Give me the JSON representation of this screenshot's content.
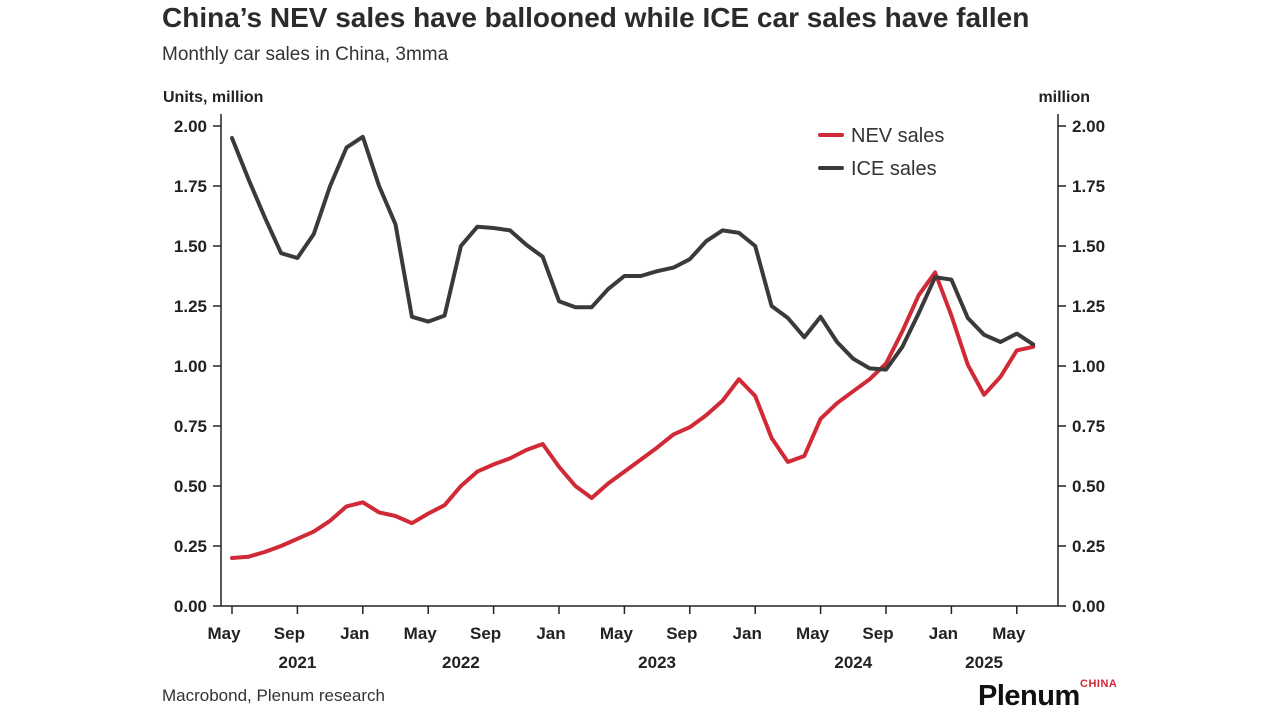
{
  "header": {
    "title": "China’s NEV sales have ballooned while ICE car sales have fallen",
    "subtitle": "Monthly car sales in China, 3mma"
  },
  "footer": {
    "source": "Macrobond, Plenum research",
    "logo_word": "Plenum",
    "logo_sub": "CHINA"
  },
  "colors": {
    "nev": "#d12a36",
    "ice": "#3a3a3a",
    "axis": "#222222",
    "text": "#222222"
  },
  "chart_data": {
    "type": "line",
    "title": "China’s NEV sales have ballooned while ICE car sales have fallen",
    "subtitle": "Monthly car sales in China, 3mma",
    "ylabel_left": "Units, million",
    "ylabel_right": "million",
    "ylim": [
      0,
      2
    ],
    "yticks": [
      "0.00",
      "0.25",
      "0.50",
      "0.75",
      "1.00",
      "1.25",
      "1.50",
      "1.75",
      "2.00"
    ],
    "x_start": "2021-05",
    "x_end": "2025-05",
    "x_tick_labels": [
      {
        "month": "2021-05",
        "label": "May"
      },
      {
        "month": "2021-09",
        "label": "Sep"
      },
      {
        "month": "2022-01",
        "label": "Jan"
      },
      {
        "month": "2022-05",
        "label": "May"
      },
      {
        "month": "2022-09",
        "label": "Sep"
      },
      {
        "month": "2023-01",
        "label": "Jan"
      },
      {
        "month": "2023-05",
        "label": "May"
      },
      {
        "month": "2023-09",
        "label": "Sep"
      },
      {
        "month": "2024-01",
        "label": "Jan"
      },
      {
        "month": "2024-05",
        "label": "May"
      },
      {
        "month": "2024-09",
        "label": "Sep"
      },
      {
        "month": "2025-01",
        "label": "Jan"
      },
      {
        "month": "2025-05",
        "label": "May"
      }
    ],
    "year_labels": [
      {
        "month": "2021-09",
        "label": "2021"
      },
      {
        "month": "2022-07",
        "label": "2022"
      },
      {
        "month": "2023-07",
        "label": "2023"
      },
      {
        "month": "2024-07",
        "label": "2024"
      },
      {
        "month": "2025-03",
        "label": "2025"
      }
    ],
    "legend_position": "top-right",
    "series": [
      {
        "name": "NEV sales",
        "color": "#d12a36",
        "points": [
          [
            "2021-05",
            0.2
          ],
          [
            "2021-06",
            0.205
          ],
          [
            "2021-07",
            0.225
          ],
          [
            "2021-08",
            0.25
          ],
          [
            "2021-09",
            0.28
          ],
          [
            "2021-10",
            0.31
          ],
          [
            "2021-11",
            0.355
          ],
          [
            "2021-12",
            0.415
          ],
          [
            "2022-01",
            0.432
          ],
          [
            "2022-02",
            0.39
          ],
          [
            "2022-03",
            0.375
          ],
          [
            "2022-04",
            0.345
          ],
          [
            "2022-05",
            0.385
          ],
          [
            "2022-06",
            0.42
          ],
          [
            "2022-07",
            0.5
          ],
          [
            "2022-08",
            0.56
          ],
          [
            "2022-09",
            0.59
          ],
          [
            "2022-10",
            0.615
          ],
          [
            "2022-11",
            0.65
          ],
          [
            "2022-12",
            0.675
          ],
          [
            "2023-01",
            0.58
          ],
          [
            "2023-02",
            0.5
          ],
          [
            "2023-03",
            0.45
          ],
          [
            "2023-04",
            0.51
          ],
          [
            "2023-05",
            0.56
          ],
          [
            "2023-06",
            0.61
          ],
          [
            "2023-07",
            0.66
          ],
          [
            "2023-08",
            0.715
          ],
          [
            "2023-09",
            0.745
          ],
          [
            "2023-10",
            0.795
          ],
          [
            "2023-11",
            0.855
          ],
          [
            "2023-12",
            0.945
          ],
          [
            "2024-01",
            0.875
          ],
          [
            "2024-02",
            0.7
          ],
          [
            "2024-03",
            0.6
          ],
          [
            "2024-04",
            0.625
          ],
          [
            "2024-05",
            0.78
          ],
          [
            "2024-06",
            0.845
          ],
          [
            "2024-07",
            0.895
          ],
          [
            "2024-08",
            0.945
          ],
          [
            "2024-09",
            1.01
          ],
          [
            "2024-10",
            1.145
          ],
          [
            "2024-11",
            1.295
          ],
          [
            "2024-12",
            1.39
          ],
          [
            "2025-01",
            1.21
          ],
          [
            "2025-02",
            1.005
          ],
          [
            "2025-03",
            0.88
          ],
          [
            "2025-04",
            0.955
          ],
          [
            "2025-05",
            1.065
          ],
          [
            "2025-06",
            1.08
          ]
        ]
      },
      {
        "name": "ICE sales",
        "color": "#3a3a3a",
        "points": [
          [
            "2021-05",
            1.95
          ],
          [
            "2021-06",
            1.78
          ],
          [
            "2021-07",
            1.62
          ],
          [
            "2021-08",
            1.47
          ],
          [
            "2021-09",
            1.45
          ],
          [
            "2021-10",
            1.55
          ],
          [
            "2021-11",
            1.75
          ],
          [
            "2021-12",
            1.91
          ],
          [
            "2022-01",
            1.955
          ],
          [
            "2022-02",
            1.75
          ],
          [
            "2022-03",
            1.59
          ],
          [
            "2022-04",
            1.205
          ],
          [
            "2022-05",
            1.185
          ],
          [
            "2022-06",
            1.21
          ],
          [
            "2022-07",
            1.5
          ],
          [
            "2022-08",
            1.58
          ],
          [
            "2022-09",
            1.575
          ],
          [
            "2022-10",
            1.565
          ],
          [
            "2022-11",
            1.505
          ],
          [
            "2022-12",
            1.455
          ],
          [
            "2023-01",
            1.27
          ],
          [
            "2023-02",
            1.245
          ],
          [
            "2023-03",
            1.245
          ],
          [
            "2023-04",
            1.32
          ],
          [
            "2023-05",
            1.375
          ],
          [
            "2023-06",
            1.375
          ],
          [
            "2023-07",
            1.395
          ],
          [
            "2023-08",
            1.41
          ],
          [
            "2023-09",
            1.445
          ],
          [
            "2023-10",
            1.52
          ],
          [
            "2023-11",
            1.565
          ],
          [
            "2023-12",
            1.555
          ],
          [
            "2024-01",
            1.5
          ],
          [
            "2024-02",
            1.25
          ],
          [
            "2024-03",
            1.2
          ],
          [
            "2024-04",
            1.12
          ],
          [
            "2024-05",
            1.205
          ],
          [
            "2024-06",
            1.1
          ],
          [
            "2024-07",
            1.03
          ],
          [
            "2024-08",
            0.99
          ],
          [
            "2024-09",
            0.985
          ],
          [
            "2024-10",
            1.08
          ],
          [
            "2024-11",
            1.22
          ],
          [
            "2024-12",
            1.37
          ],
          [
            "2025-01",
            1.36
          ],
          [
            "2025-02",
            1.2
          ],
          [
            "2025-03",
            1.13
          ],
          [
            "2025-04",
            1.1
          ],
          [
            "2025-05",
            1.135
          ],
          [
            "2025-06",
            1.09
          ]
        ]
      }
    ]
  }
}
